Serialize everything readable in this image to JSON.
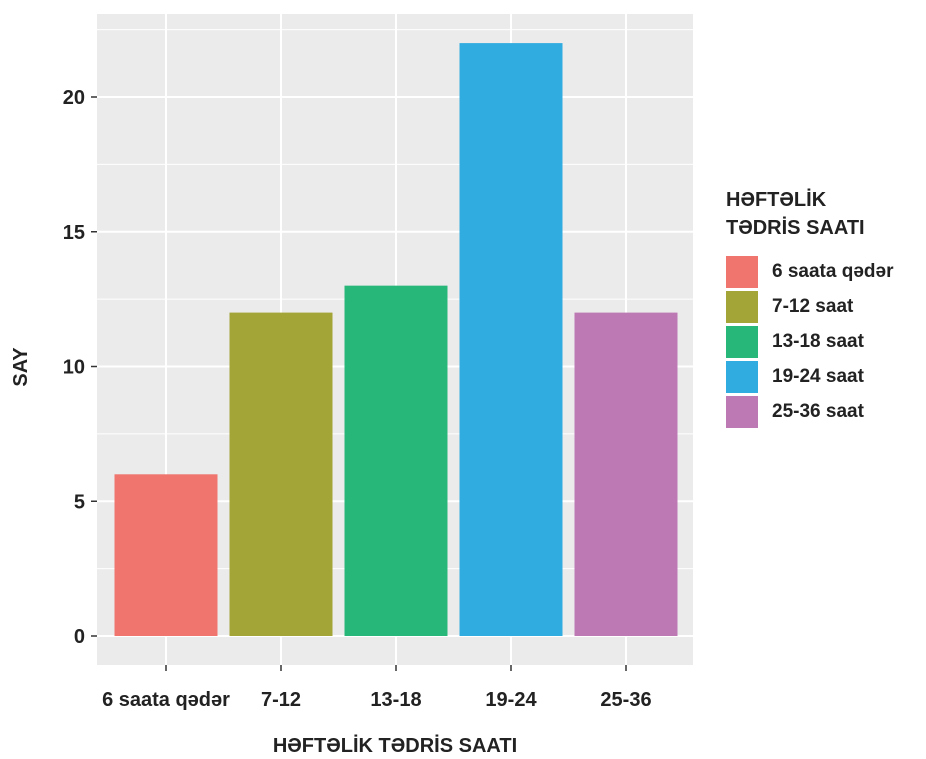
{
  "chart_data": {
    "type": "bar",
    "categories": [
      "6 saata qədər",
      "7-12",
      "13-18",
      "19-24",
      "25-36"
    ],
    "values": [
      6,
      12,
      13,
      22,
      12
    ],
    "colors": [
      "#F0756E",
      "#A3A537",
      "#27B779",
      "#31ACE0",
      "#BD79B3"
    ],
    "xlabel": "HƏFTƏLİK TƏDRİS SAATI",
    "ylabel": "SAY",
    "ylim": [
      0,
      22.9
    ],
    "yticks": [
      0,
      5,
      10,
      15,
      20
    ],
    "grid": true,
    "background": "#EBEBEB",
    "legend": {
      "title": "HƏFTƏLİK\nTƏDRİS SAATI",
      "position": "right",
      "items": [
        "6 saata qədər",
        "7-12 saat",
        "13-18 saat",
        "19-24 saat",
        "25-36 saat"
      ]
    }
  }
}
